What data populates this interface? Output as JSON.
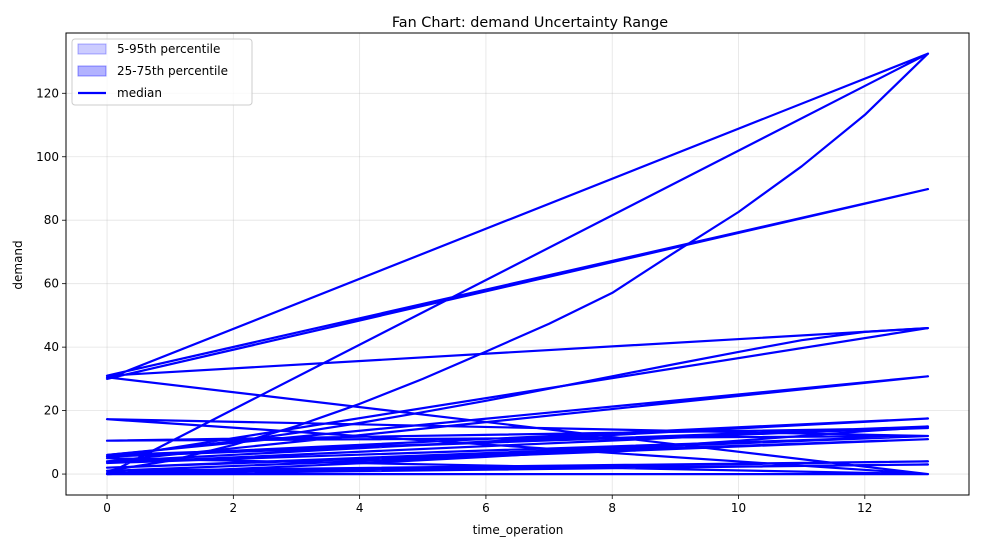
{
  "chart_data": {
    "type": "line",
    "title": "Fan Chart: demand Uncertainty Range",
    "xlabel": "time_operation",
    "ylabel": "demand",
    "xlim": [
      -0.65,
      13.65
    ],
    "ylim": [
      -6.6,
      139.0
    ],
    "xticks": [
      0,
      2,
      4,
      6,
      8,
      10,
      12
    ],
    "yticks": [
      0,
      20,
      40,
      60,
      80,
      100,
      120
    ],
    "grid": true,
    "legend_position": "upper left",
    "legend": [
      {
        "label": "5-95th percentile",
        "kind": "band",
        "color": "#0000ff",
        "opacity": 0.2
      },
      {
        "label": "25-75th percentile",
        "kind": "band",
        "color": "#0000ff",
        "opacity": 0.3
      },
      {
        "label": "median",
        "kind": "line",
        "color": "#0000ff"
      }
    ],
    "median_color": "#0000ff",
    "median_path": [
      [
        0,
        0.0
      ],
      [
        13,
        132.5
      ],
      [
        0,
        30.0
      ],
      [
        13,
        89.8
      ],
      [
        0,
        31.0
      ],
      [
        13,
        46.0
      ],
      [
        0,
        5.0
      ],
      [
        13,
        0.0
      ],
      [
        0,
        30.5
      ],
      [
        13,
        0.0
      ],
      [
        0,
        17.3
      ],
      [
        13,
        12.0
      ],
      [
        0,
        10.5
      ],
      [
        13,
        14.5
      ],
      [
        0,
        6.0
      ],
      [
        13,
        30.8
      ],
      [
        0,
        4.0
      ],
      [
        13,
        17.5
      ],
      [
        0,
        5.5
      ],
      [
        13,
        15.0
      ],
      [
        0,
        3.5
      ],
      [
        13,
        12.0
      ],
      [
        0,
        2.0
      ],
      [
        13,
        11.0
      ],
      [
        0,
        1.0
      ],
      [
        13,
        4.0
      ],
      [
        0,
        0.3
      ],
      [
        13,
        3.0
      ],
      [
        0,
        0.0
      ],
      [
        13,
        0.0
      ]
    ],
    "median_curves": [
      {
        "x": [
          0,
          1,
          2,
          3,
          4,
          5,
          6,
          7,
          8,
          9,
          10,
          11,
          12,
          13
        ],
        "y": [
          1.0,
          4.2,
          9.2,
          15.1,
          22.1,
          30.0,
          38.6,
          47.4,
          57.1,
          70.0,
          82.6,
          97.0,
          113.2,
          132.5
        ]
      },
      {
        "x": [
          0,
          1,
          2,
          3,
          4,
          5,
          6,
          7,
          8,
          9,
          10,
          11,
          12,
          13
        ],
        "y": [
          6.0,
          8.0,
          10.3,
          13.0,
          16.1,
          19.5,
          23.1,
          26.9,
          30.8,
          34.7,
          38.5,
          42.2,
          44.8,
          46.0
        ]
      },
      {
        "x": [
          0,
          2,
          4,
          6,
          8,
          10,
          12,
          13
        ],
        "y": [
          0.0,
          1.6,
          3.4,
          5.4,
          7.7,
          10.5,
          13.5,
          14.8
        ]
      }
    ]
  }
}
